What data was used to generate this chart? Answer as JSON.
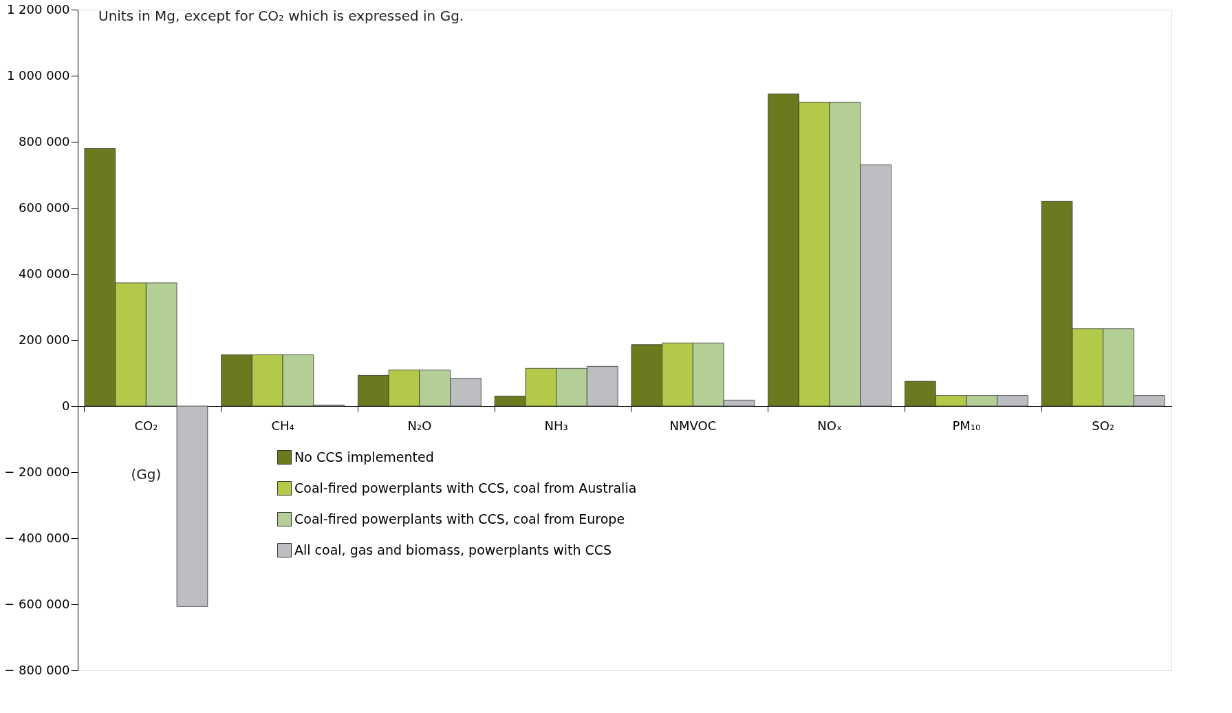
{
  "chart_data": {
    "type": "bar",
    "categories": [
      "CO₂",
      "CH₄",
      "N₂O",
      "NH₃",
      "NMVOC",
      "NOₓ",
      "PM₁₀",
      "SO₂"
    ],
    "series": [
      {
        "name": "No CCS implemented",
        "color": "#6b7a1f",
        "values": [
          780000,
          155000,
          93000,
          30000,
          186000,
          945000,
          75000,
          620000
        ]
      },
      {
        "name": "Coal-fired powerplants with CCS, coal from Australia",
        "color": "#b2c94a",
        "values": [
          373000,
          155000,
          109000,
          114000,
          191000,
          920000,
          32000,
          234000
        ]
      },
      {
        "name": "Coal-fired powerplants with CCS, coal from Europe",
        "color": "#b3cf95",
        "values": [
          373000,
          155000,
          109000,
          114000,
          191000,
          920000,
          32000,
          234000
        ]
      },
      {
        "name": "All coal, gas and biomass, powerplants with CCS",
        "color": "#bdbec2",
        "values": [
          -607000,
          3000,
          84000,
          120000,
          18000,
          730000,
          32000,
          32000
        ]
      }
    ],
    "ylim": [
      -800000,
      1200000
    ],
    "yticks": [
      {
        "value": -800000,
        "label": "− 800 000"
      },
      {
        "value": -600000,
        "label": "− 600 000"
      },
      {
        "value": -400000,
        "label": "− 400 000"
      },
      {
        "value": -200000,
        "label": "− 200 000"
      },
      0,
      {
        "value": 200000,
        "label": "200 000"
      },
      {
        "value": 400000,
        "label": "400 000"
      },
      {
        "value": 600000,
        "label": "600 000"
      },
      {
        "value": 800000,
        "label": "800 000"
      },
      {
        "value": 1000000,
        "label": "1 000 000"
      },
      {
        "value": 1200000,
        "label": "1 200 000"
      }
    ],
    "annotations": [
      "Units in Mg, except for CO₂ which is expressed in Gg.",
      "(Gg)"
    ],
    "legend": "bottom",
    "grid": false
  }
}
